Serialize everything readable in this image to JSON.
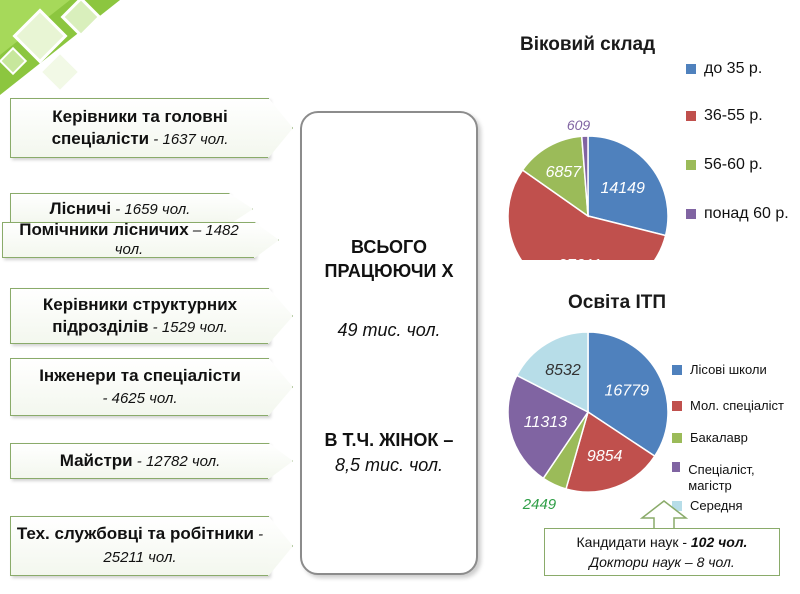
{
  "left_categories": [
    {
      "label": "Керівники та головні спеціалісти",
      "value": " - 1637 чол."
    },
    {
      "label": "Лісничі",
      "value": " - 1659 чол."
    },
    {
      "label": "Помічники лісничих",
      "value": " – 1482 чол."
    },
    {
      "label": "Керівники структурних підрозділів",
      "value": " - 1529 чол."
    },
    {
      "label": "Інженери та спеціалісти",
      "value": " - 4625 чол."
    },
    {
      "label": "Майстри",
      "value": " - 12782 чол."
    },
    {
      "label": "Тех. службовці та робітники",
      "value": " - 25211 чол."
    }
  ],
  "center": {
    "total_label": "ВСЬОГО ПРАЦЮЮЧИ Х",
    "total_value": "49 тис. чол.",
    "women_label": "В Т.Ч. ЖІНОК –",
    "women_value": "8,5 тис. чол."
  },
  "science": {
    "candidates_label": "Кандидати наук -",
    "candidates_value": " 102 чол.",
    "doctors": "Доктори наук – 8 чол."
  },
  "colors": {
    "blue": "#4f81bd",
    "red": "#c0504d",
    "green": "#9bbb59",
    "purple": "#8064a2",
    "lightblue": "#b7dde8",
    "accent_green": "#76b82a"
  },
  "chart_data": [
    {
      "type": "pie",
      "title": "Віковий склад",
      "categories": [
        "до 35 р.",
        "36-55 р.",
        "56-60 р.",
        "понад 60 р."
      ],
      "values": [
        14149,
        27311,
        6857,
        609
      ],
      "legend": "right"
    },
    {
      "type": "pie",
      "title": "Освіта ІТП",
      "categories": [
        "Лісові школи",
        "Мол. спеціаліст",
        "Бакалавр",
        "Спеціаліст, магістр",
        "Середня"
      ],
      "values": [
        16779,
        9854,
        2449,
        11313,
        8532
      ],
      "legend": "right"
    }
  ]
}
